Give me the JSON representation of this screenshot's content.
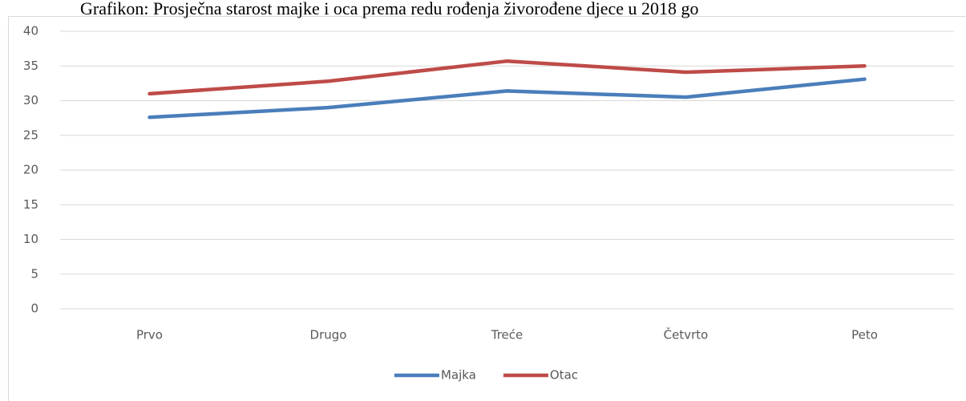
{
  "chart_data": {
    "type": "line",
    "title": "Grafikon: Prosječna starost majke i oca prema redu rođenja živorođene djece u 2018 go",
    "categories": [
      "Prvo",
      "Drugo",
      "Treće",
      "Četvrto",
      "Peto"
    ],
    "series": [
      {
        "name": "Majka",
        "color": "#4a7ebb",
        "values": [
          27.6,
          29.0,
          31.4,
          30.5,
          33.1
        ]
      },
      {
        "name": "Otac",
        "color": "#be4b48",
        "values": [
          31.0,
          32.8,
          35.7,
          34.1,
          35.0
        ]
      }
    ],
    "ylim": [
      0,
      40
    ],
    "yticks": [
      0,
      5,
      10,
      15,
      20,
      25,
      30,
      35,
      40
    ],
    "grid": true,
    "legend": "bottom"
  }
}
